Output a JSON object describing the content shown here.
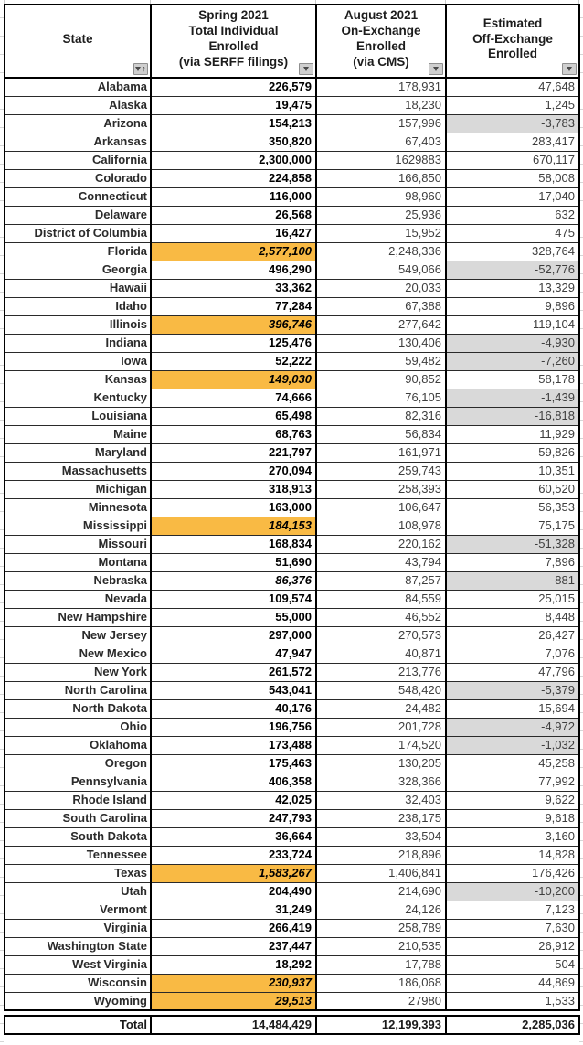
{
  "icons": {
    "filter_dropdown": "filter-dropdown-triangle",
    "sort_ascending_glyph": "↑"
  },
  "colors": {
    "highlight_orange": "#F9BA44",
    "negative_gray": "#D9D9D9",
    "border_black": "#000000"
  },
  "table": {
    "headers": [
      {
        "id": "state",
        "label": "State"
      },
      {
        "id": "spring",
        "label": "Spring 2021\nTotal Individual\nEnrolled\n(via SERFF filings)"
      },
      {
        "id": "august",
        "label": "August 2021\nOn-Exchange\nEnrolled\n(via CMS)"
      },
      {
        "id": "off",
        "label": "Estimated\nOff-Exchange\nEnrolled"
      }
    ],
    "rows": [
      {
        "state": "Alabama",
        "spring": "226,579",
        "august": "178,931",
        "off": "47,648"
      },
      {
        "state": "Alaska",
        "spring": "19,475",
        "august": "18,230",
        "off": "1,245"
      },
      {
        "state": "Arizona",
        "spring": "154,213",
        "august": "157,996",
        "off": "-3,783"
      },
      {
        "state": "Arkansas",
        "spring": "350,820",
        "august": "67,403",
        "off": "283,417"
      },
      {
        "state": "California",
        "spring": "2,300,000",
        "august": "1629883",
        "off": "670,117"
      },
      {
        "state": "Colorado",
        "spring": "224,858",
        "august": "166,850",
        "off": "58,008"
      },
      {
        "state": "Connecticut",
        "spring": "116,000",
        "august": "98,960",
        "off": "17,040"
      },
      {
        "state": "Delaware",
        "spring": "26,568",
        "august": "25,936",
        "off": "632"
      },
      {
        "state": "District of Columbia",
        "spring": "16,427",
        "august": "15,952",
        "off": "475"
      },
      {
        "state": "Florida",
        "spring": "2,577,100",
        "august": "2,248,336",
        "off": "328,764",
        "highlight": true,
        "italic": true
      },
      {
        "state": "Georgia",
        "spring": "496,290",
        "august": "549,066",
        "off": "-52,776"
      },
      {
        "state": "Hawaii",
        "spring": "33,362",
        "august": "20,033",
        "off": "13,329"
      },
      {
        "state": "Idaho",
        "spring": "77,284",
        "august": "67,388",
        "off": "9,896"
      },
      {
        "state": "Illinois",
        "spring": "396,746",
        "august": "277,642",
        "off": "119,104",
        "highlight": true,
        "italic": true
      },
      {
        "state": "Indiana",
        "spring": "125,476",
        "august": "130,406",
        "off": "-4,930"
      },
      {
        "state": "Iowa",
        "spring": "52,222",
        "august": "59,482",
        "off": "-7,260"
      },
      {
        "state": "Kansas",
        "spring": "149,030",
        "august": "90,852",
        "off": "58,178",
        "highlight": true,
        "italic": true
      },
      {
        "state": "Kentucky",
        "spring": "74,666",
        "august": "76,105",
        "off": "-1,439"
      },
      {
        "state": "Louisiana",
        "spring": "65,498",
        "august": "82,316",
        "off": "-16,818"
      },
      {
        "state": "Maine",
        "spring": "68,763",
        "august": "56,834",
        "off": "11,929"
      },
      {
        "state": "Maryland",
        "spring": "221,797",
        "august": "161,971",
        "off": "59,826"
      },
      {
        "state": "Massachusetts",
        "spring": "270,094",
        "august": "259,743",
        "off": "10,351"
      },
      {
        "state": "Michigan",
        "spring": "318,913",
        "august": "258,393",
        "off": "60,520"
      },
      {
        "state": "Minnesota",
        "spring": "163,000",
        "august": "106,647",
        "off": "56,353"
      },
      {
        "state": "Mississippi",
        "spring": "184,153",
        "august": "108,978",
        "off": "75,175",
        "highlight": true,
        "italic": true
      },
      {
        "state": "Missouri",
        "spring": "168,834",
        "august": "220,162",
        "off": "-51,328"
      },
      {
        "state": "Montana",
        "spring": "51,690",
        "august": "43,794",
        "off": "7,896"
      },
      {
        "state": "Nebraska",
        "spring": "86,376",
        "august": "87,257",
        "off": "-881",
        "italic": true
      },
      {
        "state": "Nevada",
        "spring": "109,574",
        "august": "84,559",
        "off": "25,015"
      },
      {
        "state": "New Hampshire",
        "spring": "55,000",
        "august": "46,552",
        "off": "8,448"
      },
      {
        "state": "New Jersey",
        "spring": "297,000",
        "august": "270,573",
        "off": "26,427"
      },
      {
        "state": "New Mexico",
        "spring": "47,947",
        "august": "40,871",
        "off": "7,076"
      },
      {
        "state": "New York",
        "spring": "261,572",
        "august": "213,776",
        "off": "47,796"
      },
      {
        "state": "North Carolina",
        "spring": "543,041",
        "august": "548,420",
        "off": "-5,379"
      },
      {
        "state": "North Dakota",
        "spring": "40,176",
        "august": "24,482",
        "off": "15,694"
      },
      {
        "state": "Ohio",
        "spring": "196,756",
        "august": "201,728",
        "off": "-4,972"
      },
      {
        "state": "Oklahoma",
        "spring": "173,488",
        "august": "174,520",
        "off": "-1,032"
      },
      {
        "state": "Oregon",
        "spring": "175,463",
        "august": "130,205",
        "off": "45,258"
      },
      {
        "state": "Pennsylvania",
        "spring": "406,358",
        "august": "328,366",
        "off": "77,992"
      },
      {
        "state": "Rhode Island",
        "spring": "42,025",
        "august": "32,403",
        "off": "9,622"
      },
      {
        "state": "South Carolina",
        "spring": "247,793",
        "august": "238,175",
        "off": "9,618"
      },
      {
        "state": "South Dakota",
        "spring": "36,664",
        "august": "33,504",
        "off": "3,160"
      },
      {
        "state": "Tennessee",
        "spring": "233,724",
        "august": "218,896",
        "off": "14,828"
      },
      {
        "state": "Texas",
        "spring": "1,583,267",
        "august": "1,406,841",
        "off": "176,426",
        "highlight": true,
        "italic": true
      },
      {
        "state": "Utah",
        "spring": "204,490",
        "august": "214,690",
        "off": "-10,200"
      },
      {
        "state": "Vermont",
        "spring": "31,249",
        "august": "24,126",
        "off": "7,123"
      },
      {
        "state": "Virginia",
        "spring": "266,419",
        "august": "258,789",
        "off": "7,630"
      },
      {
        "state": "Washington State",
        "spring": "237,447",
        "august": "210,535",
        "off": "26,912"
      },
      {
        "state": "West Virginia",
        "spring": "18,292",
        "august": "17,788",
        "off": "504"
      },
      {
        "state": "Wisconsin",
        "spring": "230,937",
        "august": "186,068",
        "off": "44,869",
        "highlight": true,
        "italic": true
      },
      {
        "state": "Wyoming",
        "spring": "29,513",
        "august": "27980",
        "off": "1,533",
        "highlight": true,
        "italic": true
      }
    ],
    "total": {
      "label": "Total",
      "spring": "14,484,429",
      "august": "12,199,393",
      "off": "2,285,036"
    }
  }
}
